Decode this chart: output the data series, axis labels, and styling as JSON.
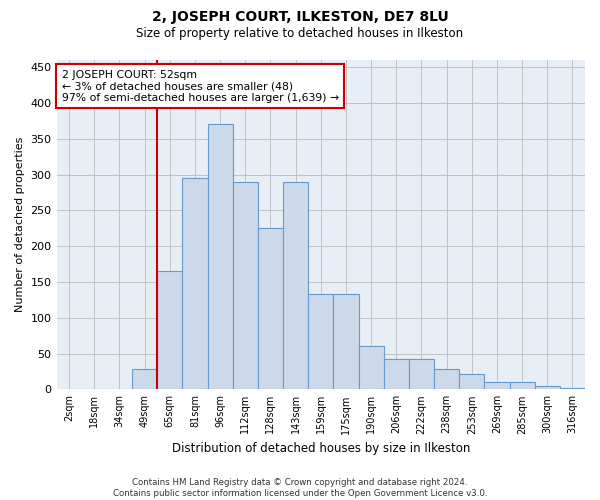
{
  "title": "2, JOSEPH COURT, ILKESTON, DE7 8LU",
  "subtitle": "Size of property relative to detached houses in Ilkeston",
  "xlabel": "Distribution of detached houses by size in Ilkeston",
  "ylabel": "Number of detached properties",
  "footer_line1": "Contains HM Land Registry data © Crown copyright and database right 2024.",
  "footer_line2": "Contains public sector information licensed under the Open Government Licence v3.0.",
  "annotation_title": "2 JOSEPH COURT: 52sqm",
  "annotation_line1": "← 3% of detached houses are smaller (48)",
  "annotation_line2": "97% of semi-detached houses are larger (1,639) →",
  "bar_color": "#ccd9ea",
  "bar_edge_color": "#6699cc",
  "vline_color": "#cc0000",
  "vline_x": 3.5,
  "categories": [
    "2sqm",
    "18sqm",
    "34sqm",
    "49sqm",
    "65sqm",
    "81sqm",
    "96sqm",
    "112sqm",
    "128sqm",
    "143sqm",
    "159sqm",
    "175sqm",
    "190sqm",
    "206sqm",
    "222sqm",
    "238sqm",
    "253sqm",
    "269sqm",
    "285sqm",
    "300sqm",
    "316sqm"
  ],
  "values": [
    0,
    0,
    0,
    28,
    165,
    295,
    370,
    290,
    225,
    290,
    133,
    133,
    60,
    43,
    43,
    28,
    22,
    10,
    10,
    5,
    2
  ],
  "ylim": [
    0,
    460
  ],
  "yticks": [
    0,
    50,
    100,
    150,
    200,
    250,
    300,
    350,
    400,
    450
  ],
  "plot_bg_color": "#e8eef5",
  "background_color": "#ffffff",
  "grid_color": "#bbbbbb"
}
